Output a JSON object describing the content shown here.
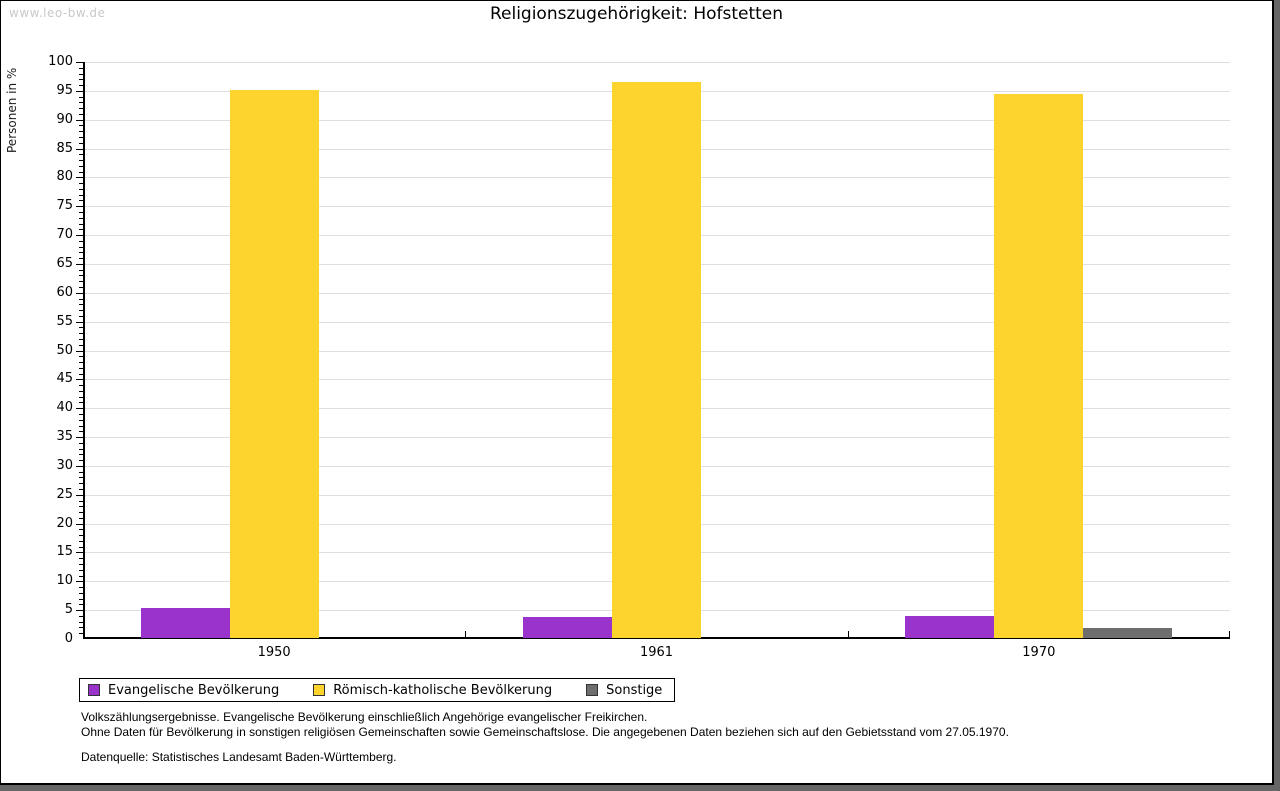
{
  "watermark": "www.leo-bw.de",
  "title": "Religionszugehörigkeit: Hofstetten",
  "chart_data": {
    "type": "bar",
    "title": "Religionszugehörigkeit: Hofstetten",
    "xlabel": "",
    "ylabel": "Personen in %",
    "ylim": [
      0,
      100
    ],
    "ytick_step": 5,
    "yminor_tick_step": 1,
    "grid": true,
    "legend_position": "bottom",
    "categories": [
      "1950",
      "1961",
      "1970"
    ],
    "series": [
      {
        "name": "Evangelische Bevölkerung",
        "color": "#9933cc",
        "values": [
          5.2,
          3.7,
          3.9
        ]
      },
      {
        "name": "Römisch-katholische Bevölkerung",
        "color": "#fcd42d",
        "values": [
          95.0,
          96.3,
          94.2
        ]
      },
      {
        "name": "Sonstige",
        "color": "#6e6e6e",
        "values": [
          0,
          0,
          1.7
        ]
      }
    ]
  },
  "footnotes": [
    "Volkszählungsergebnisse. Evangelische Bevölkerung einschließlich Angehörige evangelischer Freikirchen.",
    "Ohne Daten für Bevölkerung in sonstigen religiösen Gemeinschaften sowie Gemeinschaftslose. Die angegebenen Daten beziehen sich auf den Gebietsstand vom 27.05.1970."
  ],
  "source": "Datenquelle: Statistisches Landesamt Baden-Württemberg."
}
